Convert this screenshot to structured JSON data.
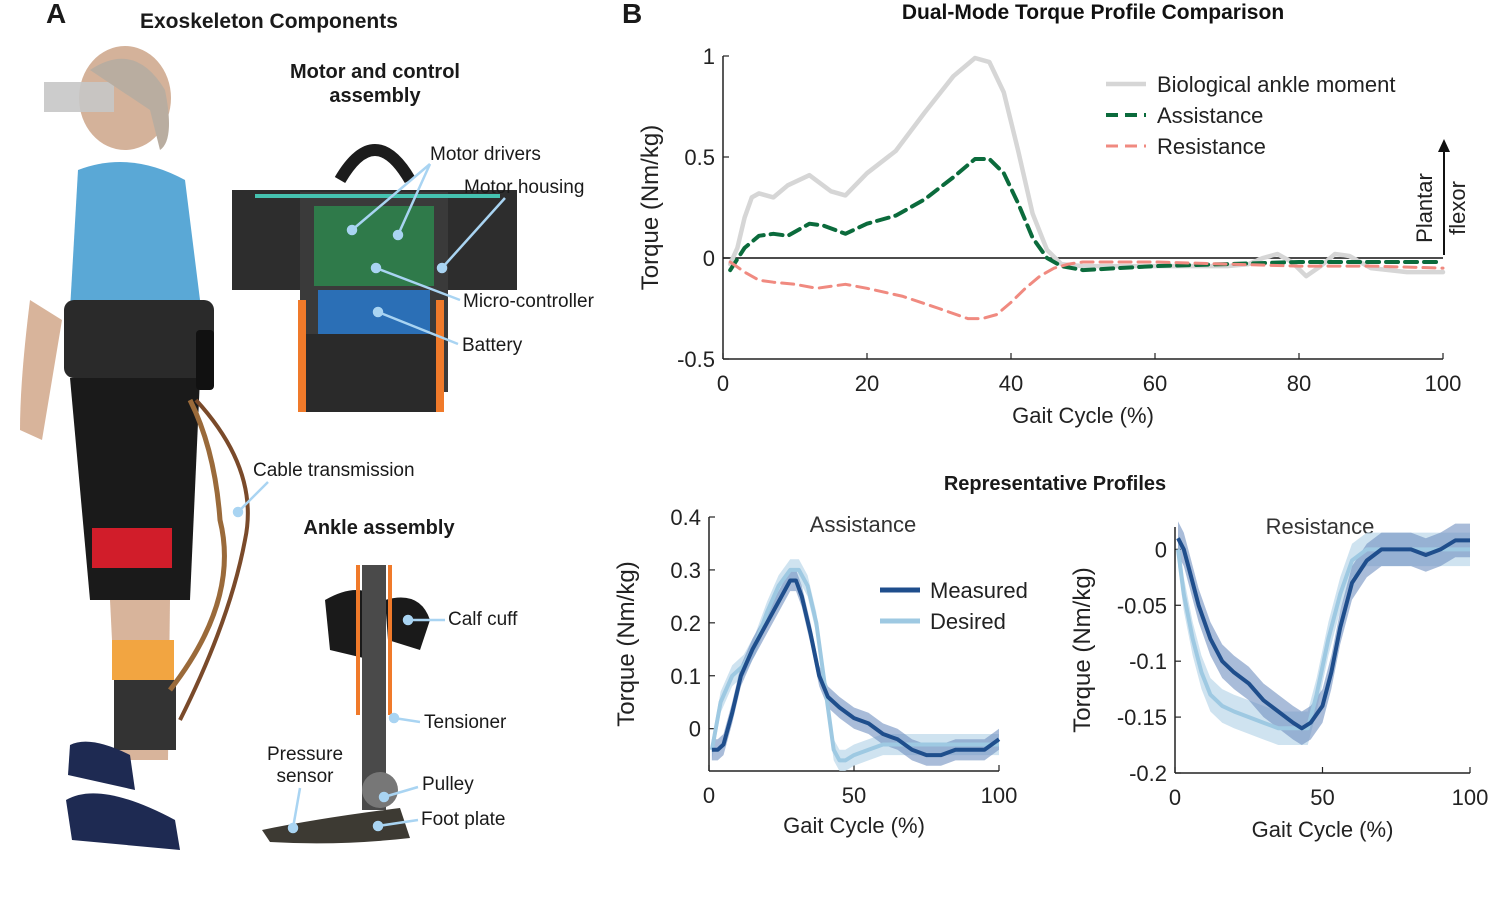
{
  "panel_a": {
    "letter": "A",
    "title": "Exoskeleton Components",
    "motor_assembly_title": "Motor and control assembly",
    "ankle_assembly_title": "Ankle assembly",
    "labels": {
      "motor_drivers": "Motor drivers",
      "motor_housing": "Motor housing",
      "micro_controller": "Micro-controller",
      "battery": "Battery",
      "cable_transmission": "Cable transmission",
      "calf_cuff": "Calf cuff",
      "tensioner": "Tensioner",
      "pressure_sensor": "Pressure\nsensor",
      "pulley": "Pulley",
      "foot_plate": "Foot plate"
    }
  },
  "panel_b": {
    "letter": "B",
    "subtitle": "Representative Profiles"
  },
  "colors": {
    "biological": "#d6d6d6",
    "assistance": "#0b6b3c",
    "resistance": "#f08a80",
    "measured": "#1f4e8c",
    "desired": "#9ec9e2",
    "band_measured": "#6f8fbf",
    "band_desired": "#c3dcec",
    "callout": "#a9d4f2"
  },
  "chart_data": [
    {
      "type": "line",
      "title": "Dual-Mode Torque Profile Comparison",
      "xlabel": "Gait Cycle (%)",
      "ylabel": "Torque (Nm/kg)",
      "xlim": [
        0,
        100
      ],
      "ylim": [
        -0.5,
        1
      ],
      "xticks": [
        0,
        20,
        40,
        60,
        80,
        100
      ],
      "xtick_labels": [
        "0",
        "20",
        "40",
        "60",
        "80",
        "100"
      ],
      "yticks": [
        -0.5,
        0,
        0.5,
        1
      ],
      "ytick_labels": [
        "-0.5",
        "0",
        "0.5",
        "1"
      ],
      "legend_position": "top-right",
      "annotation": "Plantar\nflexor",
      "grid": false,
      "series": [
        {
          "name": "Biological ankle moment",
          "style": "solid",
          "x": [
            1,
            2,
            3,
            4,
            5,
            7,
            9,
            12,
            15,
            17,
            20,
            24,
            28,
            32,
            35,
            37,
            39,
            41,
            43,
            45,
            47,
            50,
            55,
            60,
            65,
            70,
            73,
            75,
            77,
            79,
            81,
            83,
            85,
            87,
            90,
            95,
            100
          ],
          "y": [
            -0.03,
            0.05,
            0.2,
            0.3,
            0.32,
            0.3,
            0.36,
            0.41,
            0.33,
            0.31,
            0.42,
            0.53,
            0.72,
            0.9,
            0.99,
            0.97,
            0.82,
            0.53,
            0.22,
            0.04,
            -0.03,
            -0.04,
            -0.04,
            -0.04,
            -0.04,
            -0.04,
            -0.03,
            0.0,
            0.02,
            -0.02,
            -0.09,
            -0.04,
            0.02,
            0.01,
            -0.05,
            -0.07,
            -0.07
          ]
        },
        {
          "name": "Assistance",
          "style": "dashed",
          "x": [
            1,
            3,
            5,
            7,
            9,
            12,
            14,
            17,
            20,
            24,
            28,
            32,
            35,
            37,
            39,
            41,
            43,
            45,
            47,
            50,
            55,
            60,
            70,
            80,
            90,
            100
          ],
          "y": [
            -0.06,
            0.05,
            0.11,
            0.12,
            0.11,
            0.17,
            0.16,
            0.12,
            0.17,
            0.21,
            0.29,
            0.4,
            0.49,
            0.49,
            0.42,
            0.27,
            0.1,
            0.0,
            -0.04,
            -0.06,
            -0.05,
            -0.04,
            -0.03,
            -0.02,
            -0.02,
            -0.02
          ]
        },
        {
          "name": "Resistance",
          "style": "dashed",
          "x": [
            1,
            3,
            5,
            7,
            10,
            13,
            17,
            20,
            25,
            30,
            34,
            36,
            38,
            40,
            42,
            44,
            46,
            48,
            50,
            55,
            60,
            70,
            80,
            90,
            100
          ],
          "y": [
            -0.02,
            -0.07,
            -0.11,
            -0.12,
            -0.13,
            -0.15,
            -0.13,
            -0.15,
            -0.19,
            -0.25,
            -0.3,
            -0.3,
            -0.28,
            -0.22,
            -0.15,
            -0.09,
            -0.05,
            -0.03,
            -0.02,
            -0.02,
            -0.02,
            -0.03,
            -0.04,
            -0.04,
            -0.05
          ]
        }
      ]
    },
    {
      "type": "line",
      "title": "Assistance",
      "xlabel": "Gait Cycle (%)",
      "ylabel": "Torque (Nm/kg)",
      "xlim": [
        0,
        100
      ],
      "ylim": [
        -0.08,
        0.4
      ],
      "xticks": [
        0,
        50,
        100
      ],
      "xtick_labels": [
        "0",
        "50",
        "100"
      ],
      "yticks": [
        0,
        0.1,
        0.2,
        0.3,
        0.4
      ],
      "ytick_labels": [
        "0",
        "0.1",
        "0.2",
        "0.3",
        "0.4"
      ],
      "legend_position": "top-right",
      "series": [
        {
          "name": "Measured",
          "band": 0.02,
          "x": [
            1,
            3,
            5,
            8,
            11,
            15,
            20,
            25,
            28,
            30,
            32,
            35,
            38,
            41,
            45,
            50,
            55,
            60,
            65,
            70,
            75,
            80,
            85,
            90,
            95,
            100
          ],
          "y": [
            -0.04,
            -0.04,
            -0.03,
            0.03,
            0.1,
            0.15,
            0.2,
            0.25,
            0.28,
            0.28,
            0.25,
            0.18,
            0.1,
            0.06,
            0.04,
            0.02,
            0.01,
            -0.01,
            -0.02,
            -0.04,
            -0.05,
            -0.05,
            -0.04,
            -0.04,
            -0.04,
            -0.02
          ]
        },
        {
          "name": "Desired",
          "band": 0.02,
          "x": [
            1,
            4,
            8,
            12,
            16,
            20,
            24,
            28,
            31,
            34,
            37,
            40,
            43,
            45,
            47,
            50,
            55,
            60,
            70,
            80,
            90,
            100
          ],
          "y": [
            -0.04,
            0.05,
            0.1,
            0.12,
            0.16,
            0.22,
            0.27,
            0.3,
            0.3,
            0.27,
            0.2,
            0.08,
            -0.04,
            -0.06,
            -0.06,
            -0.05,
            -0.04,
            -0.03,
            -0.03,
            -0.03,
            -0.03,
            -0.03
          ]
        }
      ]
    },
    {
      "type": "line",
      "title": "Resistance",
      "xlabel": "Gait Cycle (%)",
      "ylabel": "Torque (Nm/kg)",
      "xlim": [
        0,
        100
      ],
      "ylim": [
        -0.2,
        0.02
      ],
      "xticks": [
        0,
        50,
        100
      ],
      "xtick_labels": [
        "0",
        "50",
        "100"
      ],
      "yticks": [
        -0.2,
        -0.15,
        -0.1,
        -0.05,
        0
      ],
      "ytick_labels": [
        "-0.2",
        "-0.15",
        "-0.1",
        "-0.05",
        "0"
      ],
      "series": [
        {
          "name": "Measured",
          "band": 0.015,
          "x": [
            1,
            3,
            5,
            8,
            12,
            16,
            20,
            25,
            30,
            35,
            40,
            43,
            46,
            50,
            53,
            56,
            60,
            65,
            70,
            75,
            80,
            85,
            90,
            95,
            100
          ],
          "y": [
            0.01,
            0.0,
            -0.02,
            -0.05,
            -0.08,
            -0.1,
            -0.11,
            -0.12,
            -0.135,
            -0.145,
            -0.155,
            -0.16,
            -0.155,
            -0.14,
            -0.11,
            -0.07,
            -0.03,
            -0.01,
            0.0,
            0.0,
            0.0,
            -0.005,
            0.0,
            0.008,
            0.008
          ]
        },
        {
          "name": "Desired",
          "band": 0.015,
          "x": [
            1,
            3,
            6,
            9,
            12,
            16,
            20,
            25,
            30,
            35,
            40,
            45,
            48,
            52,
            56,
            60,
            65,
            70,
            80,
            90,
            100
          ],
          "y": [
            0.0,
            -0.04,
            -0.08,
            -0.11,
            -0.13,
            -0.14,
            -0.145,
            -0.15,
            -0.155,
            -0.16,
            -0.16,
            -0.16,
            -0.13,
            -0.08,
            -0.04,
            -0.01,
            0.0,
            0.0,
            0.0,
            0.0,
            0.0
          ]
        }
      ]
    }
  ]
}
